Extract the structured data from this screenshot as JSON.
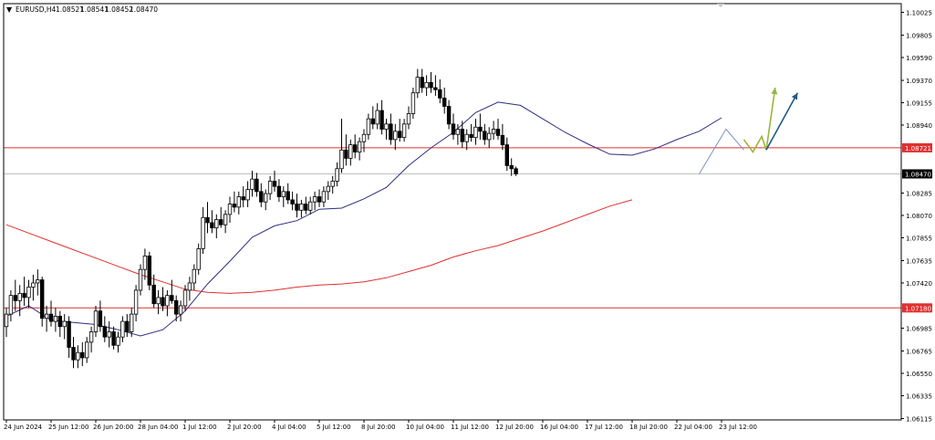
{
  "header": {
    "menu_glyph": "▼",
    "symbol_timeframe": "EURUSD,H4",
    "open": "1.08521",
    "high": "1.08541",
    "low": "1.08452",
    "close": "1.08470"
  },
  "chart_data": {
    "type": "candlestick",
    "symbol": "EURUSD",
    "timeframe": "H4",
    "ylim": [
      1.06115,
      1.10025
    ],
    "price_axis_labels": [
      "1.10025",
      "1.09805",
      "1.09590",
      "1.09370",
      "1.09155",
      "1.08940",
      "1.08721",
      "1.08470",
      "1.08285",
      "1.08070",
      "1.07855",
      "1.07635",
      "1.07420",
      "1.07180",
      "1.06985",
      "1.06765",
      "1.06550",
      "1.06335",
      "1.06115"
    ],
    "time_axis_labels": [
      "24 Jun 2024",
      "25 Jun 12:00",
      "26 Jun 20:00",
      "28 Jun 04:00",
      "1 Jul 12:00",
      "2 Jul 20:00",
      "4 Jul 04:00",
      "5 Jul 12:00",
      "8 Jul 20:00",
      "10 Jul 04:00",
      "11 Jul 12:00",
      "12 Jul 20:00",
      "16 Jul 04:00",
      "17 Jul 12:00",
      "18 Jul 20:00",
      "22 Jul 04:00",
      "23 Jul 12:00"
    ],
    "time_axis_label_bars": [
      0,
      10,
      20,
      30,
      40,
      50,
      60,
      70,
      80,
      90,
      100,
      110,
      120,
      130,
      140,
      150,
      160
    ],
    "candles": [
      [
        1.07,
        1.0718,
        1.069,
        1.0712
      ],
      [
        1.0712,
        1.0735,
        1.0705,
        1.073
      ],
      [
        1.073,
        1.0745,
        1.0715,
        1.0725
      ],
      [
        1.0725,
        1.074,
        1.071,
        1.0732
      ],
      [
        1.0732,
        1.0748,
        1.072,
        1.0728
      ],
      [
        1.0728,
        1.0745,
        1.0718,
        1.0738
      ],
      [
        1.0738,
        1.075,
        1.0725,
        1.0742
      ],
      [
        1.0742,
        1.0755,
        1.073,
        1.0745
      ],
      [
        1.0745,
        1.0748,
        1.07,
        1.0708
      ],
      [
        1.0708,
        1.072,
        1.0695,
        1.0712
      ],
      [
        1.0712,
        1.0725,
        1.07,
        1.0705
      ],
      [
        1.0705,
        1.0718,
        1.0695,
        1.071
      ],
      [
        1.071,
        1.0715,
        1.069,
        1.07
      ],
      [
        1.07,
        1.0712,
        1.0688,
        1.0705
      ],
      [
        1.0705,
        1.071,
        1.067,
        1.068
      ],
      [
        1.068,
        1.069,
        1.066,
        1.0668
      ],
      [
        1.0668,
        1.0682,
        1.066,
        1.0675
      ],
      [
        1.0675,
        1.0685,
        1.0662,
        1.067
      ],
      [
        1.067,
        1.069,
        1.0665,
        1.0685
      ],
      [
        1.0685,
        1.07,
        1.0675,
        1.0695
      ],
      [
        1.0695,
        1.072,
        1.069,
        1.0715
      ],
      [
        1.0715,
        1.0725,
        1.0695,
        1.07
      ],
      [
        1.07,
        1.071,
        1.0685,
        1.069
      ],
      [
        1.069,
        1.0705,
        1.068,
        1.0695
      ],
      [
        1.0695,
        1.07,
        1.0678,
        1.0682
      ],
      [
        1.0682,
        1.0695,
        1.0675,
        1.069
      ],
      [
        1.069,
        1.071,
        1.0685,
        1.0705
      ],
      [
        1.0705,
        1.0712,
        1.069,
        1.0695
      ],
      [
        1.0695,
        1.0718,
        1.069,
        1.0712
      ],
      [
        1.0712,
        1.074,
        1.0705,
        1.0735
      ],
      [
        1.0735,
        1.076,
        1.073,
        1.0755
      ],
      [
        1.0755,
        1.0775,
        1.0745,
        1.0768
      ],
      [
        1.0768,
        1.0772,
        1.0735,
        1.074
      ],
      [
        1.074,
        1.075,
        1.0718,
        1.0722
      ],
      [
        1.0722,
        1.0735,
        1.0712,
        1.0728
      ],
      [
        1.0728,
        1.0738,
        1.0715,
        1.072
      ],
      [
        1.072,
        1.0735,
        1.071,
        1.073
      ],
      [
        1.073,
        1.0745,
        1.0722,
        1.0725
      ],
      [
        1.0725,
        1.073,
        1.0705,
        1.0712
      ],
      [
        1.0712,
        1.0725,
        1.0705,
        1.072
      ],
      [
        1.072,
        1.074,
        1.0715,
        1.0735
      ],
      [
        1.0735,
        1.0748,
        1.0725,
        1.0742
      ],
      [
        1.0742,
        1.076,
        1.0735,
        1.0755
      ],
      [
        1.0755,
        1.078,
        1.075,
        1.0775
      ],
      [
        1.0775,
        1.0815,
        1.077,
        1.0805
      ],
      [
        1.0805,
        1.082,
        1.079,
        1.08
      ],
      [
        1.08,
        1.0812,
        1.079,
        1.0795
      ],
      [
        1.0795,
        1.0808,
        1.0785,
        1.0803
      ],
      [
        1.0803,
        1.0815,
        1.0795,
        1.0798
      ],
      [
        1.0798,
        1.0812,
        1.079,
        1.0808
      ],
      [
        1.0808,
        1.0825,
        1.08,
        1.0818
      ],
      [
        1.0818,
        1.083,
        1.081,
        1.0815
      ],
      [
        1.0815,
        1.083,
        1.0808,
        1.0825
      ],
      [
        1.0825,
        1.0835,
        1.0815,
        1.0822
      ],
      [
        1.0822,
        1.084,
        1.0815,
        1.0832
      ],
      [
        1.0832,
        1.085,
        1.0825,
        1.0842
      ],
      [
        1.0842,
        1.0848,
        1.0825,
        1.083
      ],
      [
        1.083,
        1.0838,
        1.0815,
        1.082
      ],
      [
        1.082,
        1.0832,
        1.0812,
        1.0828
      ],
      [
        1.0828,
        1.0845,
        1.0822,
        1.084
      ],
      [
        1.084,
        1.085,
        1.083,
        1.0835
      ],
      [
        1.0835,
        1.0842,
        1.082,
        1.0825
      ],
      [
        1.0825,
        1.0835,
        1.0815,
        1.083
      ],
      [
        1.083,
        1.0838,
        1.0818,
        1.0822
      ],
      [
        1.0822,
        1.083,
        1.0812,
        1.0818
      ],
      [
        1.0818,
        1.0828,
        1.0805,
        1.0812
      ],
      [
        1.0812,
        1.0822,
        1.0805,
        1.0818
      ],
      [
        1.0818,
        1.0825,
        1.0808,
        1.0812
      ],
      [
        1.0812,
        1.0825,
        1.0808,
        1.082
      ],
      [
        1.082,
        1.083,
        1.0812,
        1.0825
      ],
      [
        1.0825,
        1.0832,
        1.0815,
        1.082
      ],
      [
        1.082,
        1.0835,
        1.0815,
        1.083
      ],
      [
        1.083,
        1.084,
        1.0822,
        1.0835
      ],
      [
        1.0835,
        1.0845,
        1.0828,
        1.084
      ],
      [
        1.084,
        1.0858,
        1.0835,
        1.0852
      ],
      [
        1.0852,
        1.09,
        1.0848,
        1.087
      ],
      [
        1.087,
        1.0885,
        1.0855,
        1.0862
      ],
      [
        1.0862,
        1.088,
        1.0855,
        1.0875
      ],
      [
        1.0875,
        1.0885,
        1.0862,
        1.0868
      ],
      [
        1.0868,
        1.0882,
        1.086,
        1.0878
      ],
      [
        1.0878,
        1.089,
        1.0868,
        1.0885
      ],
      [
        1.0885,
        1.0905,
        1.088,
        1.09
      ],
      [
        1.09,
        1.0912,
        1.089,
        1.0895
      ],
      [
        1.0895,
        1.0915,
        1.089,
        1.0908
      ],
      [
        1.0908,
        1.0918,
        1.0885,
        1.089
      ],
      [
        1.089,
        1.09,
        1.088,
        1.0895
      ],
      [
        1.0895,
        1.0905,
        1.0875,
        1.088
      ],
      [
        1.088,
        1.0895,
        1.087,
        1.0888
      ],
      [
        1.0888,
        1.09,
        1.0878,
        1.0882
      ],
      [
        1.0882,
        1.09,
        1.0878,
        1.0895
      ],
      [
        1.0895,
        1.0912,
        1.089,
        1.0905
      ],
      [
        1.0905,
        1.093,
        1.09,
        1.0925
      ],
      [
        1.0925,
        1.0948,
        1.092,
        1.094
      ],
      [
        1.094,
        1.0948,
        1.0925,
        1.093
      ],
      [
        1.093,
        1.0942,
        1.0922,
        1.0935
      ],
      [
        1.0935,
        1.0945,
        1.0925,
        1.093
      ],
      [
        1.093,
        1.0942,
        1.0922,
        1.0928
      ],
      [
        1.0928,
        1.0938,
        1.0915,
        1.092
      ],
      [
        1.092,
        1.093,
        1.0905,
        1.0912
      ],
      [
        1.0912,
        1.0918,
        1.089,
        1.0895
      ],
      [
        1.0895,
        1.0905,
        1.088,
        1.0885
      ],
      [
        1.0885,
        1.0895,
        1.0875,
        1.089
      ],
      [
        1.089,
        1.0898,
        1.0872,
        1.0878
      ],
      [
        1.0878,
        1.089,
        1.087,
        1.0885
      ],
      [
        1.0885,
        1.0895,
        1.0878,
        1.0882
      ],
      [
        1.0882,
        1.09,
        1.0875,
        1.0892
      ],
      [
        1.0892,
        1.0905,
        1.088,
        1.0888
      ],
      [
        1.0888,
        1.0895,
        1.0875,
        1.088
      ],
      [
        1.088,
        1.0892,
        1.0872,
        1.0886
      ],
      [
        1.0886,
        1.0898,
        1.088,
        1.089
      ],
      [
        1.089,
        1.09,
        1.088,
        1.0884
      ],
      [
        1.0884,
        1.0895,
        1.087,
        1.0875
      ],
      [
        1.0875,
        1.0882,
        1.085,
        1.0855
      ],
      [
        1.0855,
        1.0862,
        1.0845,
        1.0852
      ],
      [
        1.0852,
        1.0854,
        1.0845,
        1.0847
      ]
    ],
    "moving_averages": [
      {
        "color": "#2d2d80",
        "values": [
          1.071,
          1.072,
          1.0706,
          1.0704,
          1.0702,
          1.0697,
          1.0691,
          1.0697,
          1.0715,
          1.0741,
          1.0763,
          1.0786,
          1.0797,
          1.0802,
          1.0813,
          1.0814,
          1.0823,
          1.0834,
          1.0855,
          1.0872,
          1.0887,
          1.0906,
          1.0916,
          1.0913,
          1.09,
          1.0887,
          1.0876,
          1.0866,
          1.0865,
          1.0871,
          1.088,
          1.0888,
          1.0901
        ]
      },
      {
        "color": "#e03030",
        "values": [
          1.0798,
          1.079,
          1.0782,
          1.0774,
          1.0766,
          1.0758,
          1.075,
          1.0743,
          1.0736,
          1.0733,
          1.0732,
          1.0733,
          1.0735,
          1.0738,
          1.074,
          1.0741,
          1.0743,
          1.0747,
          1.0753,
          1.0759,
          1.0767,
          1.0773,
          1.0778,
          1.0785,
          1.0792,
          1.08,
          1.0808,
          1.0816,
          1.0822
        ]
      }
    ],
    "horizontal_lines": [
      {
        "price": 1.08721,
        "color": "#e03030",
        "label": "1.08721"
      },
      {
        "price": 1.0718,
        "color": "#e03030",
        "label": "1.07180"
      },
      {
        "price": 1.0847,
        "color": "#c0c0c0",
        "label": "1.08470"
      }
    ],
    "annotations": [
      {
        "type": "path",
        "color": "#7c93bf",
        "points": [
          [
            155,
            1.0847
          ],
          [
            161,
            1.089
          ],
          [
            165,
            1.087
          ]
        ]
      },
      {
        "type": "arrow",
        "color": "#9ab53a",
        "points": [
          [
            165,
            1.088
          ],
          [
            167,
            1.0868
          ],
          [
            169,
            1.0883
          ],
          [
            170,
            1.087
          ],
          [
            172,
            1.093
          ]
        ]
      },
      {
        "type": "arrow",
        "color": "#1f5a8a",
        "points": [
          [
            170,
            1.087
          ],
          [
            177,
            1.0925
          ]
        ]
      }
    ],
    "grid": false,
    "legend": "none",
    "colors": {
      "bull": "#ffffff",
      "bear": "#000000",
      "outline": "#000000",
      "axis": "#000000",
      "axis_text": "#000000"
    }
  }
}
